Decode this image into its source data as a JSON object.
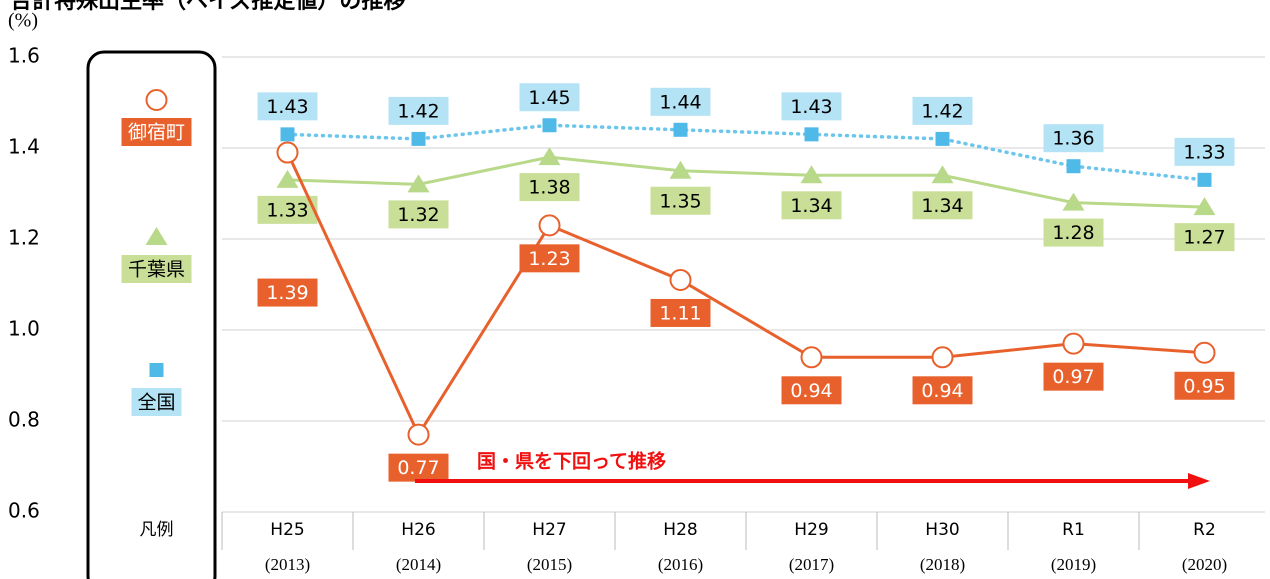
{
  "chart_data": {
    "type": "line",
    "title": "合計特殊出生率（ベイズ推定値）の推移",
    "y_label": "(%)",
    "categories": [
      "凡例",
      "H25",
      "H26",
      "H27",
      "H28",
      "H29",
      "H30",
      "R1",
      "R2"
    ],
    "subcategories": [
      null,
      "(2013)",
      "(2014)",
      "(2015)",
      "(2016)",
      "(2017)",
      "(2018)",
      "(2019)",
      "(2020)"
    ],
    "series": [
      {
        "name": "御宿町",
        "color": "#e8612c",
        "values": [
          null,
          1.39,
          0.77,
          1.23,
          1.11,
          0.94,
          0.94,
          0.97,
          0.95
        ]
      },
      {
        "name": "千葉県",
        "color": "#b9d98a",
        "values": [
          null,
          1.33,
          1.32,
          1.38,
          1.35,
          1.34,
          1.34,
          1.28,
          1.27
        ]
      },
      {
        "name": "全国",
        "color": "#6cc6ec",
        "values": [
          null,
          1.43,
          1.42,
          1.45,
          1.44,
          1.43,
          1.42,
          1.36,
          1.33
        ]
      }
    ],
    "ylim": [
      0.6,
      1.6
    ],
    "yticks": [
      0.6,
      0.8,
      {
        "value": 1,
        "label": "1.0"
      },
      1.2,
      1.4,
      1.6
    ],
    "grid": true,
    "annotation": "国・県を下回って推移"
  }
}
